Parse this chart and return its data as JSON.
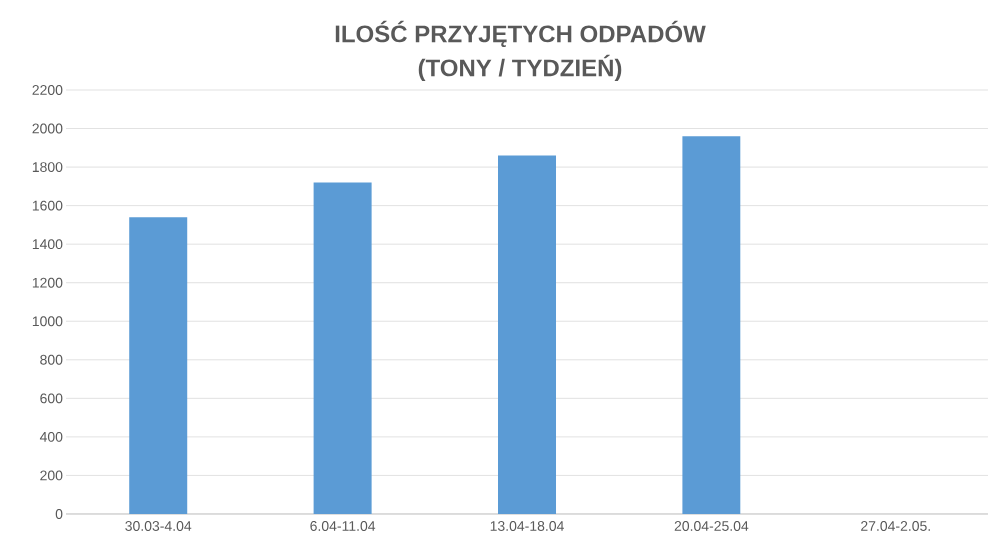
{
  "chart_data": {
    "type": "bar",
    "title": "ILOŚĆ PRZYJĘTYCH ODPADÓW",
    "subtitle": "(TONY / TYDZIEŃ)",
    "categories": [
      "30.03-4.04",
      "6.04-11.04",
      "13.04-18.04",
      "20.04-25.04",
      "27.04-2.05."
    ],
    "values": [
      1540,
      1720,
      1860,
      1960,
      null
    ],
    "color": "#5b9bd5",
    "ylim": [
      0,
      2200
    ],
    "yticks": [
      0,
      200,
      400,
      600,
      800,
      1000,
      1200,
      1400,
      1600,
      1800,
      2000,
      2200
    ],
    "grid": "y"
  }
}
